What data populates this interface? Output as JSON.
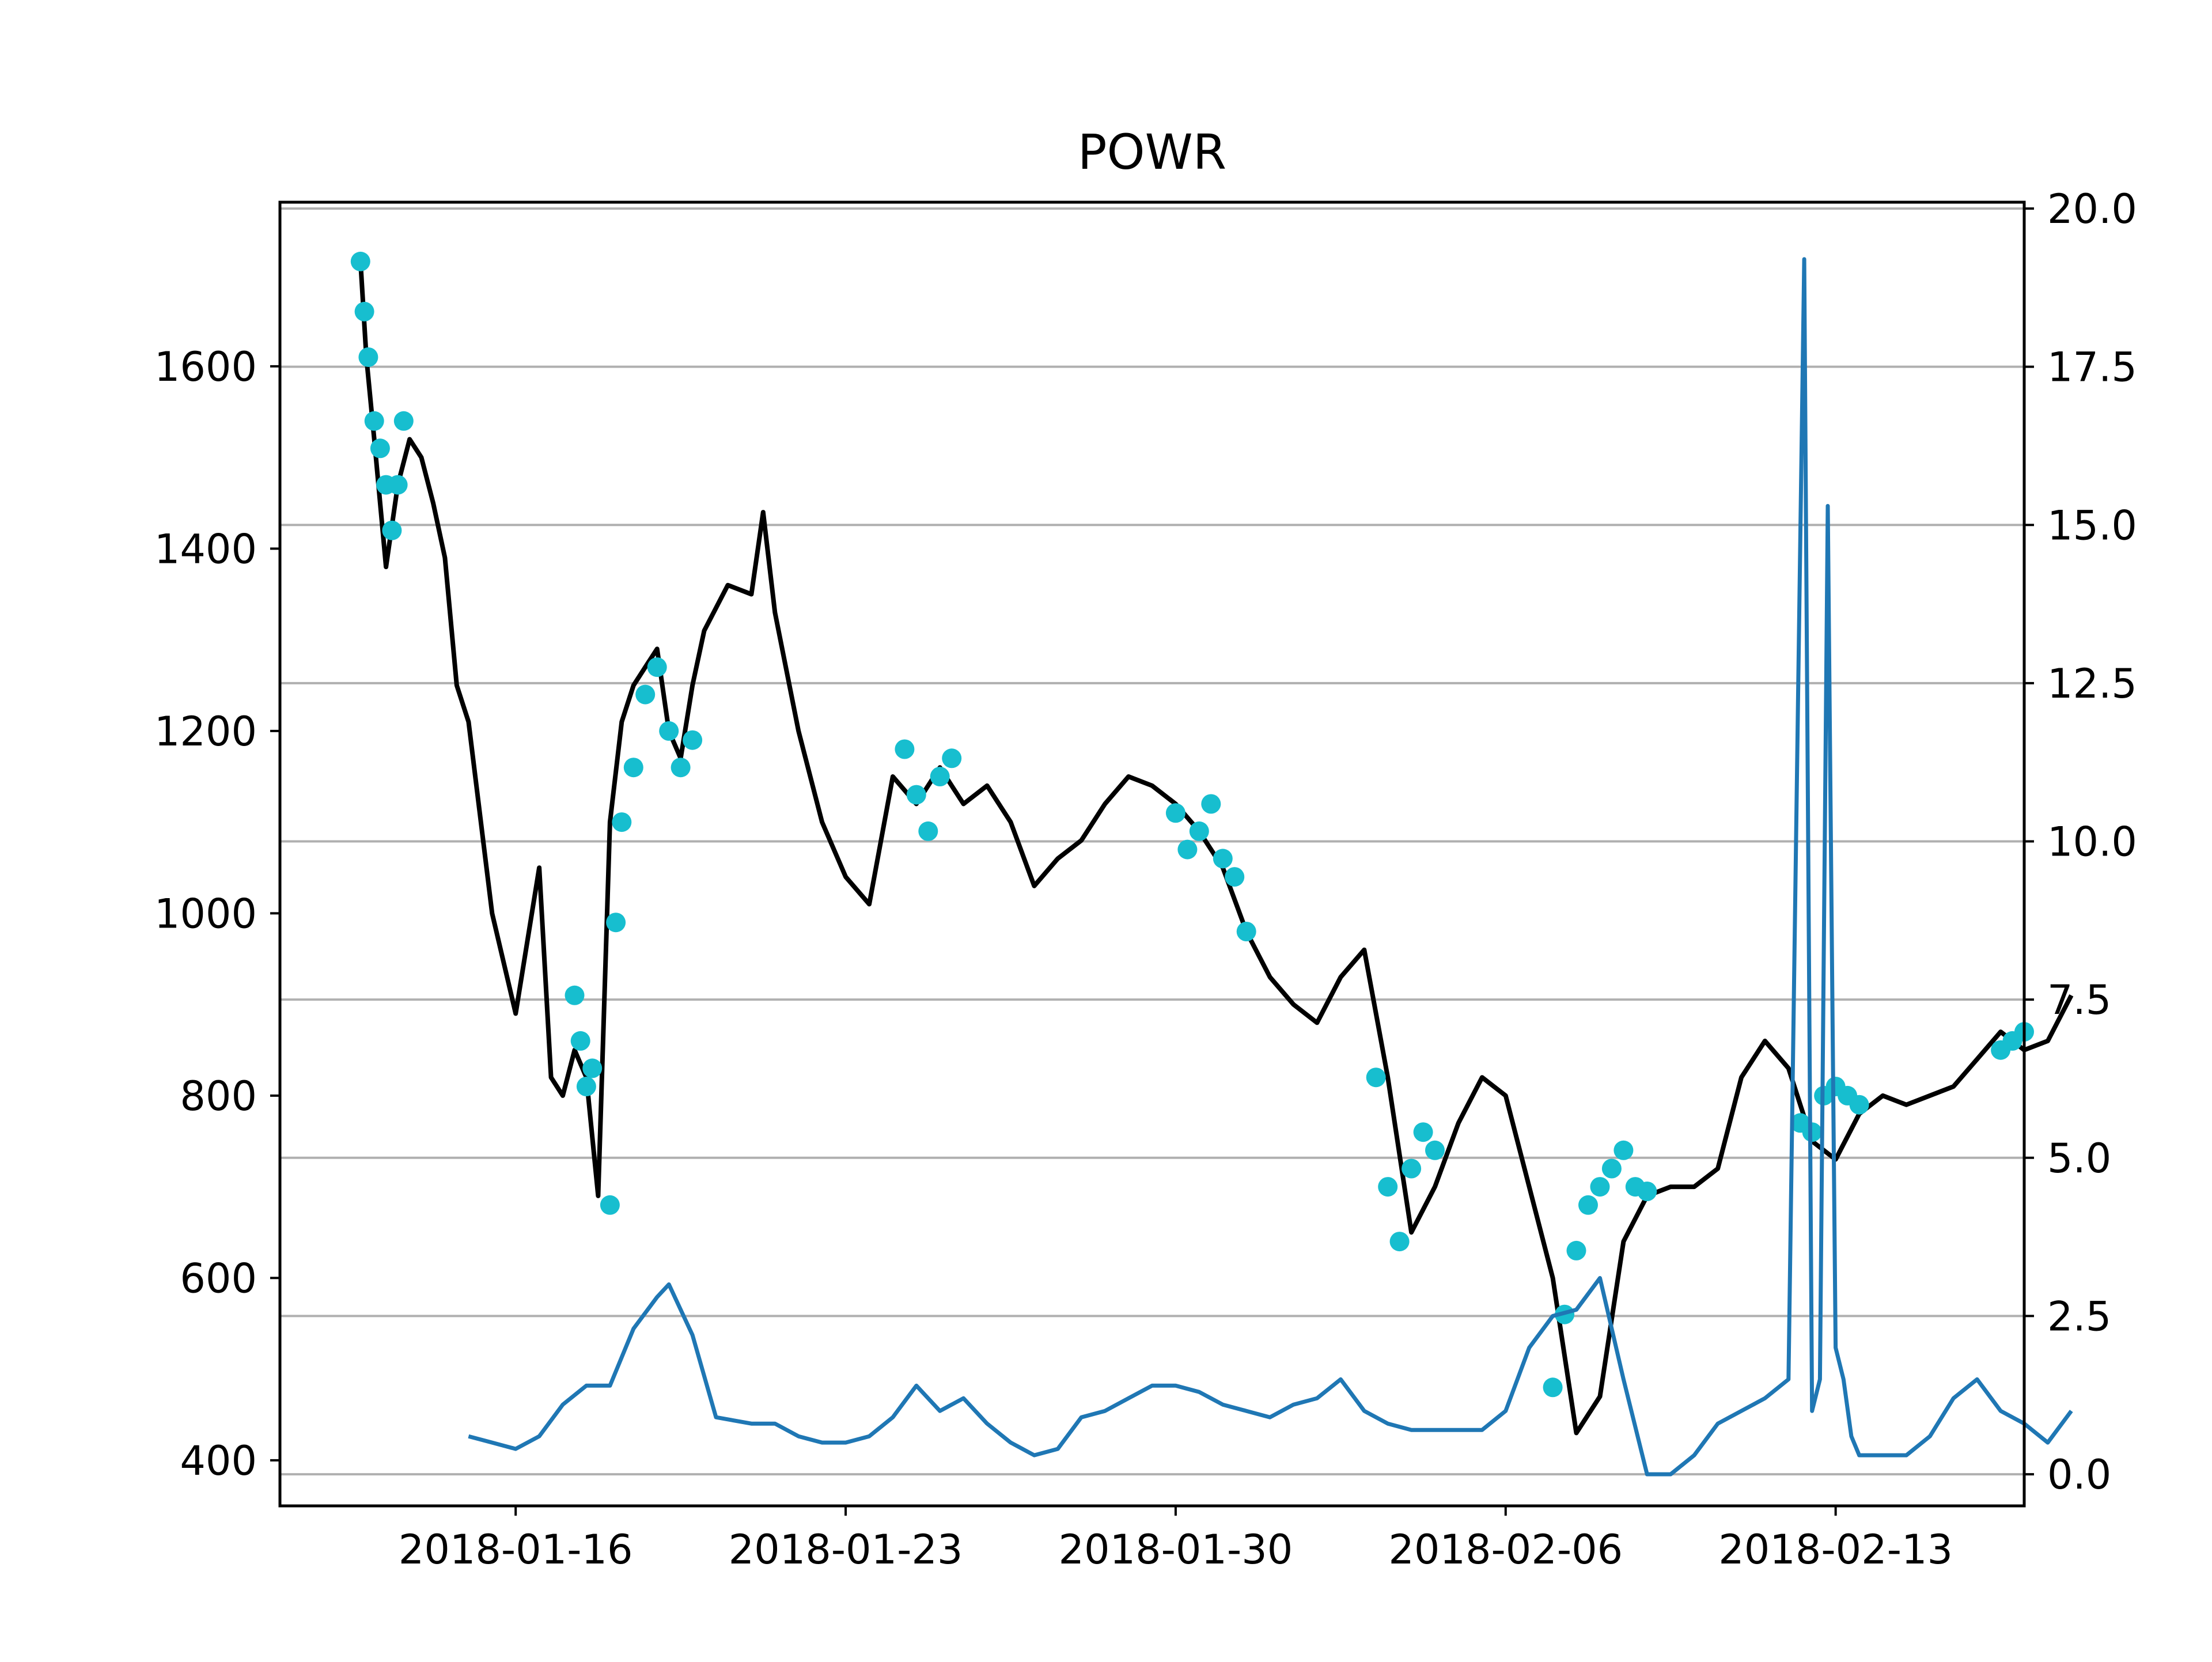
{
  "chart_data": {
    "type": "line",
    "title": "POWR",
    "xlabel": "",
    "ylabel": "",
    "y2label": "",
    "x_range": [
      "2018-01-11",
      "2018-02-17"
    ],
    "x_ticks": [
      "2018-01-16",
      "2018-01-23",
      "2018-01-30",
      "2018-02-06",
      "2018-02-13"
    ],
    "ylim": [
      350,
      1780
    ],
    "y_ticks": [
      400,
      600,
      800,
      1000,
      1200,
      1400,
      1600
    ],
    "y2lim": [
      -0.5,
      20.1
    ],
    "y2_ticks": [
      "0.0",
      "2.5",
      "5.0",
      "7.5",
      "10.0",
      "12.5",
      "15.0",
      "17.5",
      "20.0"
    ],
    "grid": "horizontal, right axis",
    "colors": {
      "price": "#000000",
      "markers": "#17becf",
      "indicator": "#1f77b4",
      "grid": "#b0b0b0"
    },
    "series": [
      {
        "axis": "left",
        "style": "line",
        "x": [
          "2018-01-12T17:00",
          "2018-01-12T20:00",
          "2018-01-13T00:00",
          "2018-01-13T06:00",
          "2018-01-13T12:00",
          "2018-01-13T18:00",
          "2018-01-14T00:00",
          "2018-01-14T06:00",
          "2018-01-14T12:00",
          "2018-01-14T18:00",
          "2018-01-15T00:00",
          "2018-01-15T12:00",
          "2018-01-16T00:00",
          "2018-01-16T12:00",
          "2018-01-16T18:00",
          "2018-01-17T00:00",
          "2018-01-17T06:00",
          "2018-01-17T12:00",
          "2018-01-17T18:00",
          "2018-01-18T00:00",
          "2018-01-18T06:00",
          "2018-01-18T12:00",
          "2018-01-18T18:00",
          "2018-01-19T00:00",
          "2018-01-19T06:00",
          "2018-01-19T12:00",
          "2018-01-19T18:00",
          "2018-01-20T00:00",
          "2018-01-20T12:00",
          "2018-01-21T00:00",
          "2018-01-21T06:00",
          "2018-01-21T12:00",
          "2018-01-22T00:00",
          "2018-01-22T12:00",
          "2018-01-23T00:00",
          "2018-01-23T12:00",
          "2018-01-24T00:00",
          "2018-01-24T12:00",
          "2018-01-25T00:00",
          "2018-01-25T12:00",
          "2018-01-26T00:00",
          "2018-01-26T12:00",
          "2018-01-27T00:00",
          "2018-01-27T12:00",
          "2018-01-28T00:00",
          "2018-01-28T12:00",
          "2018-01-29T00:00",
          "2018-01-29T12:00",
          "2018-01-30T00:00",
          "2018-01-30T12:00",
          "2018-01-31T00:00",
          "2018-01-31T12:00",
          "2018-02-01T00:00",
          "2018-02-01T12:00",
          "2018-02-02T00:00",
          "2018-02-02T12:00",
          "2018-02-03T00:00",
          "2018-02-03T12:00",
          "2018-02-04T00:00",
          "2018-02-04T12:00",
          "2018-02-05T00:00",
          "2018-02-05T12:00",
          "2018-02-06T00:00",
          "2018-02-06T12:00",
          "2018-02-07T00:00",
          "2018-02-07T12:00",
          "2018-02-08T00:00",
          "2018-02-08T12:00",
          "2018-02-09T00:00",
          "2018-02-09T12:00",
          "2018-02-10T00:00",
          "2018-02-10T12:00",
          "2018-02-11T00:00",
          "2018-02-11T12:00",
          "2018-02-12T00:00",
          "2018-02-12T12:00",
          "2018-02-13T00:00",
          "2018-02-13T12:00",
          "2018-02-14T00:00",
          "2018-02-14T12:00",
          "2018-02-15T00:00",
          "2018-02-15T12:00",
          "2018-02-16T00:00",
          "2018-02-16T12:00",
          "2018-02-17T00:00",
          "2018-02-17T12:00",
          "2018-02-18T00:00"
        ],
        "values": [
          1715,
          1610,
          1520,
          1380,
          1470,
          1520,
          1500,
          1450,
          1390,
          1250,
          1210,
          1000,
          890,
          1050,
          820,
          800,
          850,
          820,
          690,
          1100,
          1210,
          1250,
          1270,
          1290,
          1200,
          1170,
          1250,
          1310,
          1360,
          1350,
          1440,
          1330,
          1200,
          1100,
          1040,
          1010,
          1150,
          1120,
          1160,
          1120,
          1140,
          1100,
          1030,
          1060,
          1080,
          1120,
          1150,
          1140,
          1120,
          1090,
          1050,
          980,
          930,
          900,
          880,
          930,
          960,
          820,
          650,
          700,
          770,
          820,
          800,
          700,
          600,
          430,
          470,
          640,
          690,
          700,
          700,
          720,
          820,
          860,
          830,
          750,
          730,
          780,
          800,
          790,
          800,
          810,
          840,
          870,
          850,
          860,
          910
        ]
      },
      {
        "axis": "left",
        "style": "markers",
        "x": [
          "2018-01-12T17:00",
          "2018-01-12T19:00",
          "2018-01-12T21:00",
          "2018-01-13T00:00",
          "2018-01-13T03:00",
          "2018-01-13T06:00",
          "2018-01-13T09:00",
          "2018-01-13T12:00",
          "2018-01-13T15:00",
          "2018-01-17T06:00",
          "2018-01-17T09:00",
          "2018-01-17T12:00",
          "2018-01-17T15:00",
          "2018-01-18T00:00",
          "2018-01-18T03:00",
          "2018-01-18T06:00",
          "2018-01-18T12:00",
          "2018-01-18T18:00",
          "2018-01-19T00:00",
          "2018-01-19T06:00",
          "2018-01-19T12:00",
          "2018-01-19T18:00",
          "2018-01-24T06:00",
          "2018-01-24T12:00",
          "2018-01-24T18:00",
          "2018-01-25T00:00",
          "2018-01-25T06:00",
          "2018-01-30T00:00",
          "2018-01-30T06:00",
          "2018-01-30T12:00",
          "2018-01-30T18:00",
          "2018-01-31T00:00",
          "2018-01-31T06:00",
          "2018-01-31T12:00",
          "2018-02-03T06:00",
          "2018-02-03T12:00",
          "2018-02-03T18:00",
          "2018-02-04T00:00",
          "2018-02-04T06:00",
          "2018-02-04T12:00",
          "2018-02-07T00:00",
          "2018-02-07T06:00",
          "2018-02-07T12:00",
          "2018-02-07T18:00",
          "2018-02-08T00:00",
          "2018-02-08T06:00",
          "2018-02-08T12:00",
          "2018-02-08T18:00",
          "2018-02-09T00:00",
          "2018-02-12T06:00",
          "2018-02-12T12:00",
          "2018-02-12T18:00",
          "2018-02-13T00:00",
          "2018-02-13T06:00",
          "2018-02-13T12:00",
          "2018-02-16T12:00",
          "2018-02-16T18:00",
          "2018-02-17T00:00"
        ],
        "values": [
          1715,
          1660,
          1610,
          1540,
          1510,
          1470,
          1420,
          1470,
          1540,
          910,
          860,
          810,
          830,
          680,
          990,
          1100,
          1160,
          1240,
          1270,
          1200,
          1160,
          1190,
          1180,
          1130,
          1090,
          1150,
          1170,
          1110,
          1070,
          1090,
          1120,
          1060,
          1040,
          980,
          820,
          700,
          640,
          720,
          760,
          740,
          480,
          560,
          630,
          680,
          700,
          720,
          740,
          700,
          695,
          770,
          760,
          800,
          810,
          800,
          790,
          850,
          860,
          870
        ]
      },
      {
        "axis": "right",
        "style": "line",
        "x": [
          "2018-01-15T00:00",
          "2018-01-15T12:00",
          "2018-01-16T00:00",
          "2018-01-16T12:00",
          "2018-01-17T00:00",
          "2018-01-17T12:00",
          "2018-01-18T00:00",
          "2018-01-18T12:00",
          "2018-01-19T00:00",
          "2018-01-19T06:00",
          "2018-01-19T18:00",
          "2018-01-20T06:00",
          "2018-01-21T00:00",
          "2018-01-21T12:00",
          "2018-01-22T00:00",
          "2018-01-22T12:00",
          "2018-01-23T00:00",
          "2018-01-23T12:00",
          "2018-01-24T00:00",
          "2018-01-24T12:00",
          "2018-01-25T00:00",
          "2018-01-25T12:00",
          "2018-01-26T00:00",
          "2018-01-26T12:00",
          "2018-01-27T00:00",
          "2018-01-27T12:00",
          "2018-01-28T00:00",
          "2018-01-28T12:00",
          "2018-01-29T00:00",
          "2018-01-29T12:00",
          "2018-01-30T00:00",
          "2018-01-30T12:00",
          "2018-01-31T00:00",
          "2018-01-31T12:00",
          "2018-02-01T00:00",
          "2018-02-01T12:00",
          "2018-02-02T00:00",
          "2018-02-02T12:00",
          "2018-02-03T00:00",
          "2018-02-03T12:00",
          "2018-02-04T00:00",
          "2018-02-04T12:00",
          "2018-02-05T00:00",
          "2018-02-05T12:00",
          "2018-02-06T00:00",
          "2018-02-06T12:00",
          "2018-02-07T00:00",
          "2018-02-07T12:00",
          "2018-02-08T00:00",
          "2018-02-08T12:00",
          "2018-02-09T00:00",
          "2018-02-09T12:00",
          "2018-02-10T00:00",
          "2018-02-10T12:00",
          "2018-02-11T00:00",
          "2018-02-11T12:00",
          "2018-02-12T00:00",
          "2018-02-12T08:00",
          "2018-02-12T12:00",
          "2018-02-12T16:00",
          "2018-02-12T20:00",
          "2018-02-13T00:00",
          "2018-02-13T04:00",
          "2018-02-13T08:00",
          "2018-02-13T12:00",
          "2018-02-14T00:00",
          "2018-02-14T12:00",
          "2018-02-15T00:00",
          "2018-02-15T12:00",
          "2018-02-16T00:00",
          "2018-02-16T12:00",
          "2018-02-17T00:00",
          "2018-02-17T12:00",
          "2018-02-18T00:00"
        ],
        "values": [
          0.6,
          0.5,
          0.4,
          0.6,
          1.1,
          1.4,
          1.4,
          2.3,
          2.8,
          3.0,
          2.2,
          0.9,
          0.8,
          0.8,
          0.6,
          0.5,
          0.5,
          0.6,
          0.9,
          1.4,
          1.0,
          1.2,
          0.8,
          0.5,
          0.3,
          0.4,
          0.9,
          1.0,
          1.2,
          1.4,
          1.4,
          1.3,
          1.1,
          1.0,
          0.9,
          1.1,
          1.2,
          1.5,
          1.0,
          0.8,
          0.7,
          0.7,
          0.7,
          0.7,
          1.0,
          2.0,
          2.5,
          2.6,
          3.1,
          1.5,
          0.0,
          0.0,
          0.3,
          0.8,
          1.0,
          1.2,
          1.5,
          19.2,
          1.0,
          1.5,
          15.3,
          2.0,
          1.5,
          0.6,
          0.3,
          0.3,
          0.3,
          0.6,
          1.2,
          1.5,
          1.0,
          0.8,
          0.5,
          1.0
        ]
      }
    ]
  }
}
